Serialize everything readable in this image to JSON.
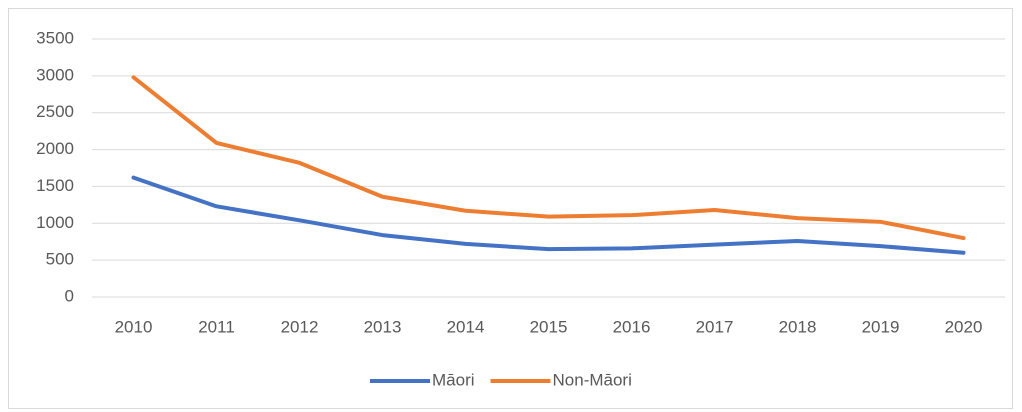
{
  "chart_data": {
    "type": "line",
    "categories": [
      "2010",
      "2011",
      "2012",
      "2013",
      "2014",
      "2015",
      "2016",
      "2017",
      "2018",
      "2019",
      "2020"
    ],
    "series": [
      {
        "name": "Māori",
        "color": "#4472c4",
        "values": [
          1620,
          1230,
          1040,
          840,
          720,
          650,
          660,
          710,
          760,
          690,
          600
        ]
      },
      {
        "name": "Non-Māori",
        "color": "#ed7d31",
        "values": [
          2980,
          2090,
          1820,
          1360,
          1170,
          1090,
          1110,
          1180,
          1070,
          1020,
          800
        ]
      }
    ],
    "ylim": [
      0,
      3500
    ],
    "yticks": [
      0,
      500,
      1000,
      1500,
      2000,
      2500,
      3000,
      3500
    ],
    "grid": true,
    "legend": "bottom"
  }
}
